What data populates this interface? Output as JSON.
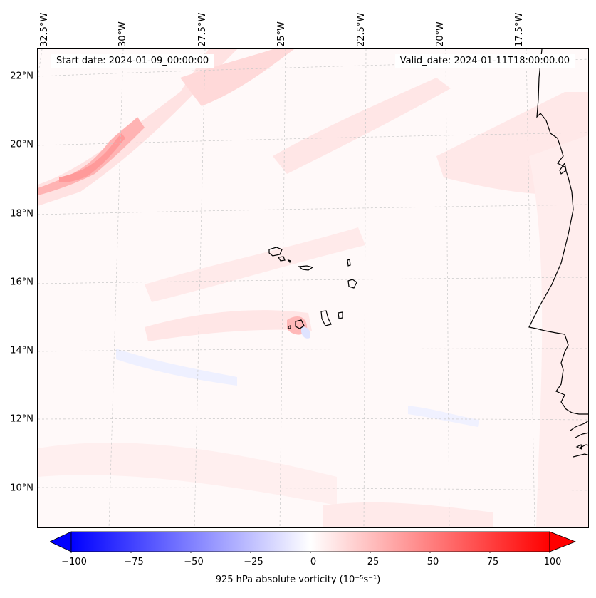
{
  "map": {
    "variable": "925 hPa absolute vorticity",
    "units_label": "925 hPa absolute vorticity (10⁻⁵s⁻¹)",
    "start_date": "Start date: 2024-01-09_00:00:00",
    "valid_date": "Valid_date: 2024-01-11T18:00:00.00",
    "lat_labels": [
      "22°N",
      "20°N",
      "18°N",
      "16°N",
      "14°N",
      "12°N",
      "10°N"
    ],
    "lon_labels": [
      "32.5°W",
      "30°W",
      "27.5°W",
      "25°W",
      "22.5°W",
      "20°W",
      "17.5°W"
    ],
    "gridlines": true,
    "features": [
      "Cape Verde islands",
      "West African coastline"
    ]
  },
  "colorbar": {
    "min": -100,
    "max": 100,
    "ticks": [
      "−100",
      "−75",
      "−50",
      "−25",
      "0",
      "25",
      "50",
      "75",
      "100"
    ],
    "low_color": "#0000ff",
    "mid_color": "#ffffff",
    "high_color": "#ff0000",
    "extend": "both"
  }
}
